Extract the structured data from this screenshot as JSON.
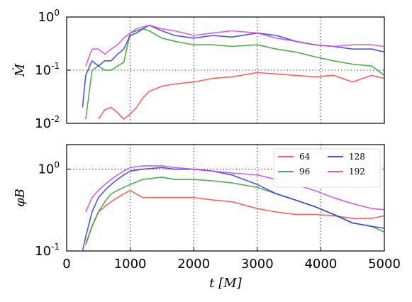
{
  "chart_data": [
    {
      "type": "line",
      "ylabel": "Ṁ",
      "xlim": [
        0,
        5000
      ],
      "ylim": [
        0.01,
        1
      ],
      "yscale": "log",
      "grid": true,
      "y_ticks": [
        {
          "value": 0.01,
          "label": "10",
          "exp": "-2"
        },
        {
          "value": 0.1,
          "label": "10",
          "exp": "-1"
        },
        {
          "value": 1,
          "label": "10",
          "exp": "0"
        }
      ],
      "series": [
        {
          "name": "64",
          "color": "#ff4444",
          "x": [
            500,
            600,
            700,
            800,
            900,
            1000,
            1100,
            1200,
            1300,
            1500,
            1700,
            2000,
            2300,
            2600,
            3000,
            3300,
            3600,
            3900,
            4200,
            4500,
            4800,
            5000
          ],
          "y": [
            0.012,
            0.018,
            0.02,
            0.016,
            0.012,
            0.015,
            0.02,
            0.03,
            0.04,
            0.05,
            0.055,
            0.06,
            0.07,
            0.075,
            0.09,
            0.085,
            0.08,
            0.075,
            0.08,
            0.06,
            0.08,
            0.07
          ]
        },
        {
          "name": "96",
          "color": "#2e9e2e",
          "x": [
            300,
            400,
            500,
            600,
            700,
            800,
            900,
            1000,
            1100,
            1200,
            1300,
            1500,
            1700,
            2000,
            2300,
            2600,
            3000,
            3300,
            3600,
            3900,
            4200,
            4500,
            4800,
            5000
          ],
          "y": [
            0.012,
            0.1,
            0.12,
            0.1,
            0.1,
            0.12,
            0.14,
            0.5,
            0.55,
            0.6,
            0.55,
            0.4,
            0.35,
            0.3,
            0.3,
            0.28,
            0.3,
            0.25,
            0.22,
            0.18,
            0.15,
            0.13,
            0.12,
            0.08
          ]
        },
        {
          "name": "128",
          "color": "#3333ee",
          "x": [
            250,
            300,
            400,
            500,
            600,
            700,
            800,
            900,
            1000,
            1100,
            1200,
            1300,
            1500,
            1700,
            2000,
            2300,
            2600,
            3000,
            3300,
            3600,
            3900,
            4200,
            4500,
            4800,
            5000
          ],
          "y": [
            0.02,
            0.08,
            0.15,
            0.12,
            0.15,
            0.15,
            0.2,
            0.25,
            0.45,
            0.5,
            0.6,
            0.7,
            0.55,
            0.45,
            0.4,
            0.45,
            0.42,
            0.5,
            0.45,
            0.35,
            0.3,
            0.28,
            0.25,
            0.25,
            0.22
          ]
        },
        {
          "name": "192",
          "color": "#cc44dd",
          "x": [
            300,
            400,
            500,
            600,
            700,
            800,
            900,
            1000,
            1100,
            1200,
            1300,
            1500,
            1700,
            2000,
            2300,
            2600,
            3000,
            3300,
            3600,
            3900,
            4200,
            4500,
            4800,
            5000
          ],
          "y": [
            0.12,
            0.25,
            0.25,
            0.2,
            0.25,
            0.3,
            0.4,
            0.5,
            0.6,
            0.65,
            0.7,
            0.6,
            0.55,
            0.45,
            0.5,
            0.55,
            0.5,
            0.4,
            0.35,
            0.3,
            0.28,
            0.3,
            0.3,
            0.28
          ]
        }
      ]
    },
    {
      "type": "line",
      "ylabel": "φB",
      "xlabel": "t [M]",
      "xlim": [
        0,
        5000
      ],
      "ylim": [
        0.1,
        2
      ],
      "yscale": "log",
      "grid": true,
      "x_ticks": [
        0,
        1000,
        2000,
        3000,
        4000,
        5000
      ],
      "y_ticks": [
        {
          "value": 0.1,
          "label": "10",
          "exp": "-1"
        },
        {
          "value": 1,
          "label": "10",
          "exp": "0"
        }
      ],
      "legend": {
        "placement": "top-right",
        "columns": 2,
        "entries": [
          "64",
          "96",
          "128",
          "192"
        ]
      },
      "series": [
        {
          "name": "64",
          "color": "#ff4444",
          "x": [
            300,
            400,
            500,
            600,
            700,
            800,
            900,
            1000,
            1200,
            1500,
            1700,
            2000,
            2300,
            2600,
            3000,
            3300,
            3600,
            3900,
            4200,
            4500,
            4800,
            5000
          ],
          "y": [
            0.12,
            0.2,
            0.3,
            0.35,
            0.4,
            0.45,
            0.5,
            0.55,
            0.45,
            0.45,
            0.45,
            0.45,
            0.42,
            0.4,
            0.33,
            0.3,
            0.28,
            0.28,
            0.27,
            0.25,
            0.25,
            0.27
          ]
        },
        {
          "name": "96",
          "color": "#2e9e2e",
          "x": [
            300,
            400,
            500,
            600,
            700,
            800,
            900,
            1000,
            1200,
            1500,
            1700,
            2000,
            2300,
            2600,
            3000,
            3300,
            3600,
            3900,
            4200,
            4500,
            4800,
            5000
          ],
          "y": [
            0.12,
            0.2,
            0.3,
            0.4,
            0.5,
            0.55,
            0.6,
            0.65,
            0.75,
            0.8,
            0.75,
            0.75,
            0.72,
            0.68,
            0.6,
            0.5,
            0.42,
            0.35,
            0.28,
            0.22,
            0.2,
            0.17
          ]
        },
        {
          "name": "128",
          "color": "#3333ee",
          "x": [
            250,
            300,
            400,
            500,
            600,
            700,
            800,
            900,
            1000,
            1200,
            1500,
            1700,
            2000,
            2300,
            2600,
            3000,
            3300,
            3600,
            3900,
            4200,
            4500,
            4800,
            5000
          ],
          "y": [
            0.1,
            0.15,
            0.3,
            0.45,
            0.55,
            0.65,
            0.75,
            0.85,
            0.95,
            1.0,
            1.05,
            1.0,
            1.0,
            0.95,
            0.85,
            0.65,
            0.5,
            0.42,
            0.35,
            0.28,
            0.22,
            0.2,
            0.19
          ]
        },
        {
          "name": "192",
          "color": "#cc44dd",
          "x": [
            300,
            400,
            500,
            600,
            700,
            800,
            900,
            1000,
            1200,
            1500,
            1700,
            2000,
            2300,
            2600,
            3000,
            3300,
            3600,
            3900,
            4200,
            4500,
            4800,
            5000
          ],
          "y": [
            0.3,
            0.45,
            0.55,
            0.65,
            0.75,
            0.85,
            0.95,
            1.05,
            1.1,
            1.1,
            1.05,
            1.0,
            0.95,
            0.9,
            0.85,
            0.75,
            0.65,
            0.55,
            0.45,
            0.38,
            0.33,
            0.32
          ]
        }
      ]
    }
  ]
}
